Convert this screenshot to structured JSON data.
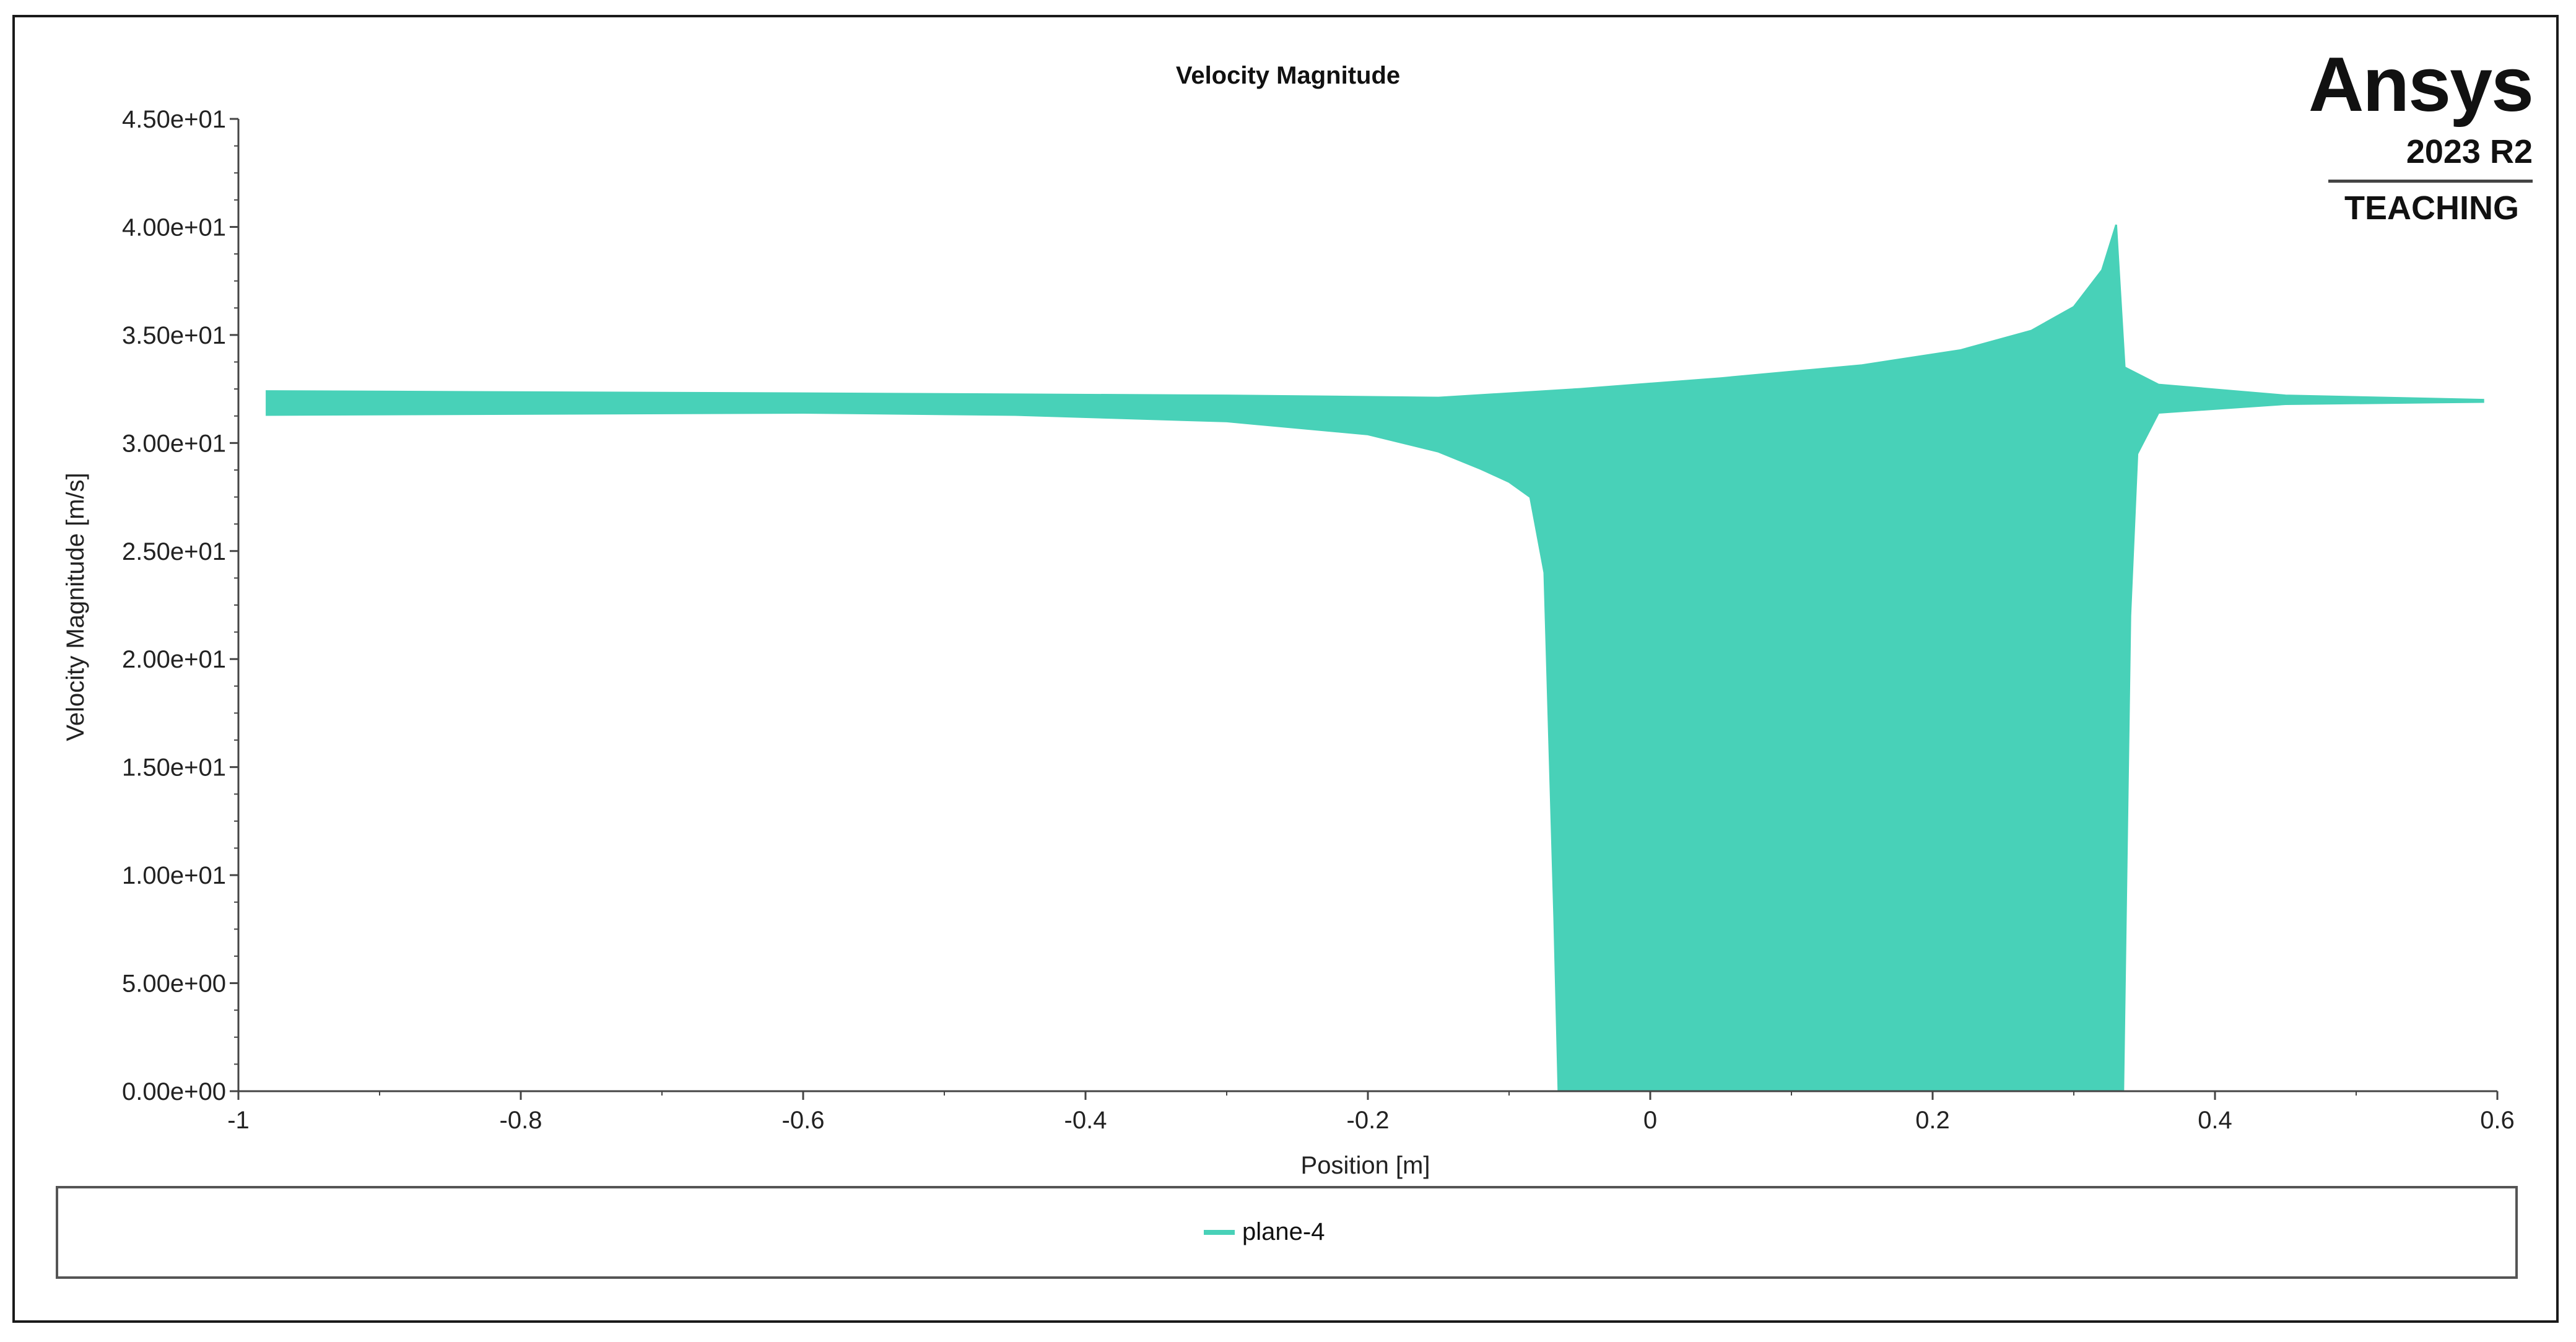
{
  "brand": {
    "name": "Ansys",
    "version": "2023 R2",
    "edition": "TEACHING"
  },
  "chart_data": {
    "type": "line",
    "title": "Velocity Magnitude",
    "xlabel": "Position [m]",
    "ylabel": "Velocity Magnitude [m/s]",
    "xlim": [
      -1,
      0.6
    ],
    "ylim": [
      0,
      45
    ],
    "x_ticks": [
      -1,
      -0.8,
      -0.6,
      -0.4,
      -0.2,
      0,
      0.2,
      0.4,
      0.6
    ],
    "x_tick_labels": [
      "-1",
      "-0.8",
      "-0.6",
      "-0.4",
      "-0.2",
      "0",
      "0.2",
      "0.4",
      "0.6"
    ],
    "y_ticks": [
      0,
      5,
      10,
      15,
      20,
      25,
      30,
      35,
      40,
      45
    ],
    "y_tick_labels": [
      "0.00e+00",
      "5.00e+00",
      "1.00e+01",
      "1.50e+01",
      "2.00e+01",
      "2.50e+01",
      "3.00e+01",
      "3.50e+01",
      "4.00e+01",
      "4.50e+01"
    ],
    "grid": false,
    "legend_position": "bottom",
    "series": [
      {
        "name": "plane-4",
        "color": "#48d1b8",
        "band_upper": [
          [
            -0.98,
            32.4
          ],
          [
            -0.6,
            32.3
          ],
          [
            -0.3,
            32.2
          ],
          [
            -0.15,
            32.1
          ],
          [
            -0.05,
            32.5
          ],
          [
            0.05,
            33.0
          ],
          [
            0.15,
            33.6
          ],
          [
            0.22,
            34.3
          ],
          [
            0.27,
            35.2
          ],
          [
            0.3,
            36.3
          ],
          [
            0.32,
            38.0
          ],
          [
            0.33,
            40.1
          ],
          [
            0.336,
            33.5
          ],
          [
            0.36,
            32.7
          ],
          [
            0.45,
            32.2
          ],
          [
            0.59,
            32.0
          ]
        ],
        "band_lower": [
          [
            -0.98,
            31.3
          ],
          [
            -0.6,
            31.4
          ],
          [
            -0.45,
            31.3
          ],
          [
            -0.3,
            31.0
          ],
          [
            -0.2,
            30.4
          ],
          [
            -0.15,
            29.6
          ],
          [
            -0.12,
            28.8
          ],
          [
            -0.1,
            28.2
          ],
          [
            -0.085,
            27.5
          ],
          [
            -0.075,
            24.0
          ],
          [
            -0.068,
            8.0
          ],
          [
            -0.065,
            0
          ],
          [
            0.335,
            0
          ],
          [
            0.34,
            22.0
          ],
          [
            0.345,
            29.5
          ],
          [
            0.36,
            31.4
          ],
          [
            0.45,
            31.8
          ],
          [
            0.59,
            31.9
          ]
        ]
      }
    ]
  }
}
